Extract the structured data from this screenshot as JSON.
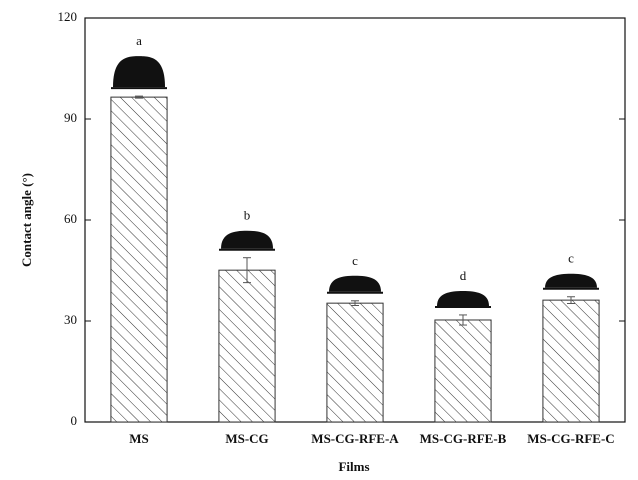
{
  "chart_data": {
    "type": "bar",
    "x_label": "Films",
    "y_label": "Contact angle (°)",
    "categories": [
      "MS",
      "MS-CG",
      "MS-CG-RFE-A",
      "MS-CG-RFE-B",
      "MS-CG-RFE-C"
    ],
    "values": [
      96.5,
      45.1,
      35.3,
      30.3,
      36.2
    ],
    "errors": [
      0.3,
      3.7,
      0.7,
      1.5,
      1.0
    ],
    "annotations": [
      "a",
      "b",
      "c",
      "d",
      "c"
    ],
    "color": "#333333",
    "ylim": [
      0,
      120
    ],
    "yticks": [
      0,
      30,
      60,
      90,
      120
    ],
    "grid": false
  }
}
